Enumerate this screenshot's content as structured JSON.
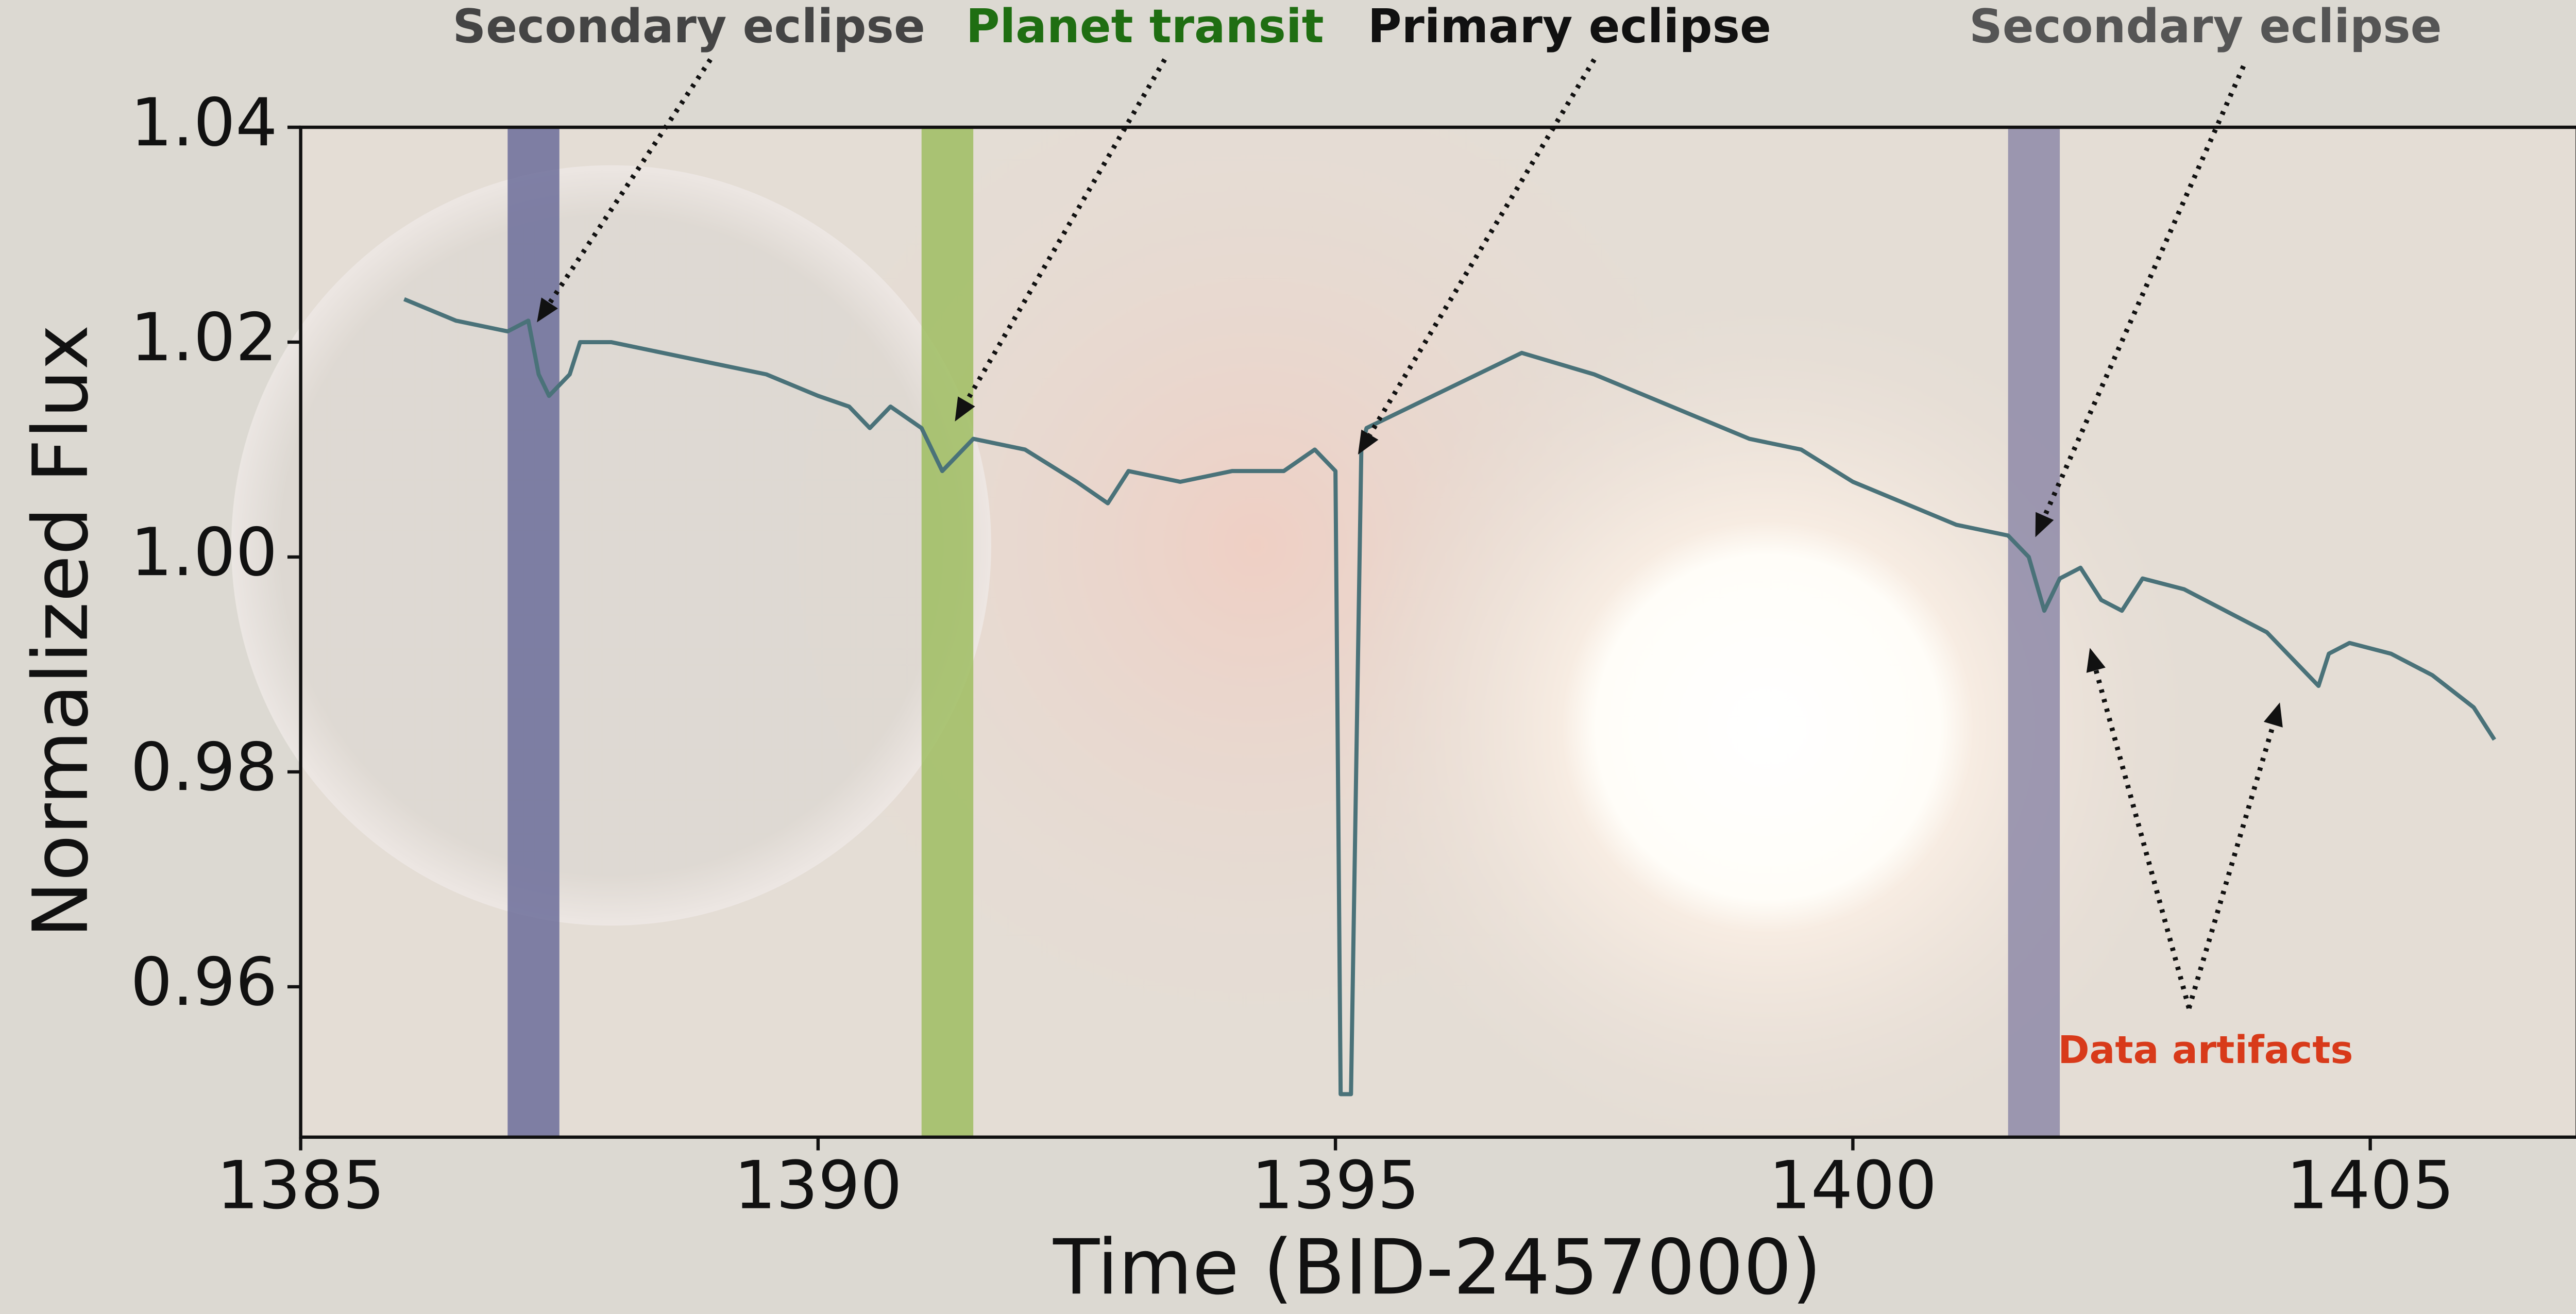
{
  "chart_data": {
    "type": "line",
    "xlabel": "Time (BID-2457000)",
    "ylabel": "Normalized Flux",
    "xlim": [
      1385,
      1407
    ],
    "ylim": [
      0.946,
      1.04
    ],
    "xticks": [
      1385,
      1390,
      1395,
      1400,
      1405
    ],
    "yticks": [
      0.96,
      0.98,
      {
        "value": 1.0,
        "label": "1.00"
      },
      1.02,
      1.04
    ],
    "grid": false,
    "color": "#4a7279",
    "x": [
      1386.0,
      1386.5,
      1387.0,
      1387.2,
      1387.3,
      1387.4,
      1387.6,
      1387.7,
      1388.0,
      1388.5,
      1389.0,
      1389.5,
      1390.0,
      1390.3,
      1390.5,
      1390.7,
      1391.0,
      1391.2,
      1391.5,
      1392.0,
      1392.5,
      1392.8,
      1393.0,
      1393.5,
      1394.0,
      1394.5,
      1394.8,
      1395.0,
      1395.05,
      1395.15,
      1395.25,
      1395.3,
      1396.8,
      1397.5,
      1398.0,
      1398.5,
      1399.0,
      1399.5,
      1400.0,
      1400.5,
      1401.0,
      1401.5,
      1401.7,
      1401.85,
      1402.0,
      1402.2,
      1402.4,
      1402.6,
      1402.8,
      1403.2,
      1403.6,
      1404.0,
      1404.3,
      1404.5,
      1404.6,
      1404.8,
      1405.2,
      1405.6,
      1406.0,
      1406.2
    ],
    "values": [
      1.024,
      1.022,
      1.021,
      1.022,
      1.017,
      1.015,
      1.017,
      1.02,
      1.02,
      1.019,
      1.018,
      1.017,
      1.015,
      1.014,
      1.012,
      1.014,
      1.012,
      1.008,
      1.011,
      1.01,
      1.007,
      1.005,
      1.008,
      1.007,
      1.008,
      1.008,
      1.01,
      1.008,
      0.95,
      0.95,
      1.01,
      1.012,
      1.019,
      1.017,
      1.015,
      1.013,
      1.011,
      1.01,
      1.007,
      1.005,
      1.003,
      1.002,
      1.0,
      0.995,
      0.998,
      0.999,
      0.996,
      0.995,
      0.998,
      0.997,
      0.995,
      0.993,
      0.99,
      0.988,
      0.991,
      0.992,
      0.991,
      0.989,
      0.986,
      0.983
    ],
    "spans": [
      {
        "x0": 1387.0,
        "x1": 1387.5,
        "color": "#6c6d9a"
      },
      {
        "x0": 1391.0,
        "x1": 1391.5,
        "color": "#9fbd62"
      },
      {
        "x0": 1401.5,
        "x1": 1402.0,
        "color": "#8e8aa8"
      }
    ],
    "annotations": [
      {
        "text": "Secondary eclipse",
        "color": "#444444"
      },
      {
        "text": "Planet transit",
        "color": "#1f6e12"
      },
      {
        "text": "Primary eclipse",
        "color": "#111111"
      },
      {
        "text": "Secondary eclipse",
        "color": "#555555"
      },
      {
        "text": "Data artifacts",
        "color": "#d83a1a"
      }
    ]
  }
}
